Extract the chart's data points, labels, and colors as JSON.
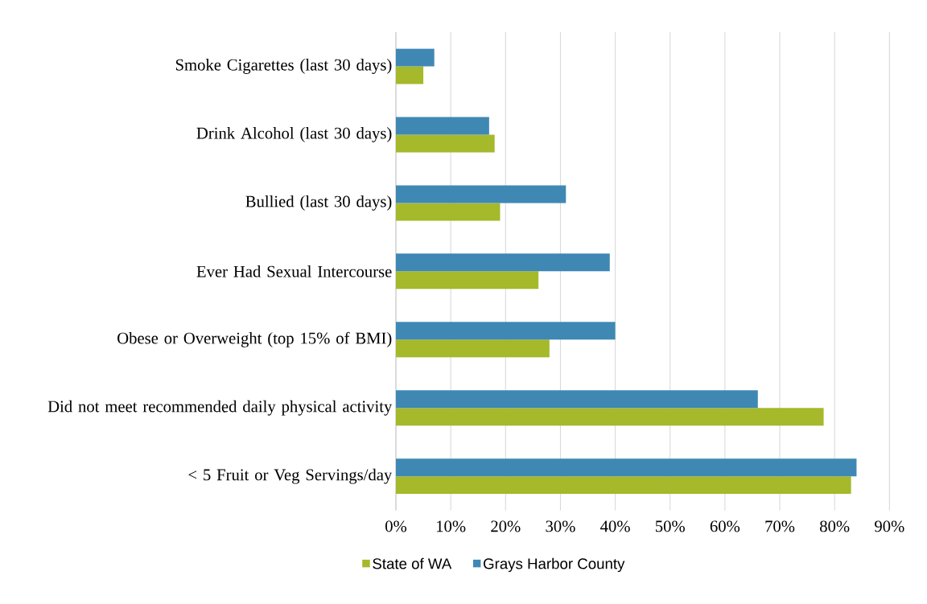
{
  "chart_data": {
    "type": "bar",
    "orientation": "horizontal",
    "categories": [
      "Smoke Cigarettes (last 30 days)",
      "Drink Alcohol (last 30 days)",
      "Bullied (last 30 days)",
      "Ever Had Sexual Intercourse",
      "Obese or Overweight (top 15% of BMI)",
      "Did not meet recommended daily physical activity",
      "< 5 Fruit or Veg Servings/day"
    ],
    "series": [
      {
        "name": "State of WA",
        "color": "#a5b92a",
        "values": [
          5,
          18,
          19,
          26,
          28,
          78,
          83
        ]
      },
      {
        "name": "Grays Harbor County",
        "color": "#3f88b4",
        "values": [
          7,
          17,
          31,
          39,
          40,
          66,
          84
        ]
      }
    ],
    "xlim": [
      0,
      90
    ],
    "xticks": [
      {
        "value": 0,
        "label": "0%"
      },
      {
        "value": 10,
        "label": "10%"
      },
      {
        "value": 20,
        "label": "20%"
      },
      {
        "value": 30,
        "label": "30%"
      },
      {
        "value": 40,
        "label": "40%"
      },
      {
        "value": 50,
        "label": "50%"
      },
      {
        "value": 60,
        "label": "60%"
      },
      {
        "value": 70,
        "label": "70%"
      },
      {
        "value": 80,
        "label": "80%"
      },
      {
        "value": 90,
        "label": "90%"
      }
    ],
    "grid": "x",
    "legend": "bottom"
  }
}
